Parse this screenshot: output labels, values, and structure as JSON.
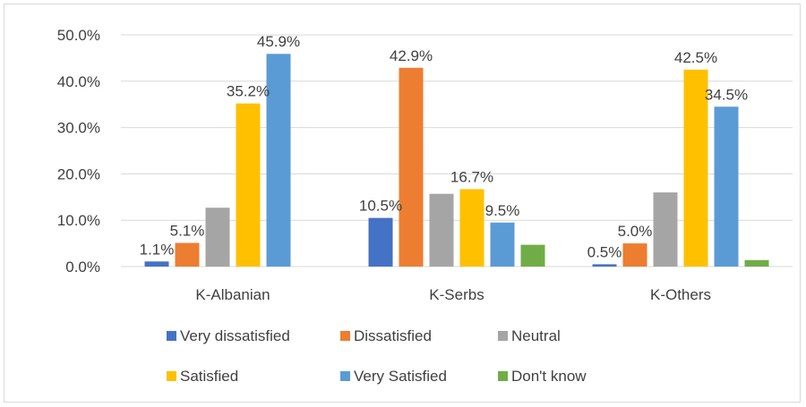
{
  "chart_data": {
    "type": "bar",
    "categories": [
      "K-Albanian",
      "K-Serbs",
      "K-Others"
    ],
    "series": [
      {
        "name": "Very dissatisfied",
        "color": "#4472C4",
        "values": [
          1.1,
          10.5,
          0.5
        ],
        "labels": [
          "1.1%",
          "10.5%",
          "0.5%"
        ]
      },
      {
        "name": "Dissatisfied",
        "color": "#ED7D31",
        "values": [
          5.1,
          42.9,
          5.0
        ],
        "labels": [
          "5.1%",
          "42.9%",
          "5.0%"
        ]
      },
      {
        "name": "Neutral",
        "color": "#A5A5A5",
        "values": [
          12.7,
          15.7,
          16.0
        ],
        "labels": [
          "",
          "",
          ""
        ]
      },
      {
        "name": "Satisfied",
        "color": "#FFC000",
        "values": [
          35.2,
          16.7,
          42.5
        ],
        "labels": [
          "35.2%",
          "16.7%",
          "42.5%"
        ]
      },
      {
        "name": "Very Satisfied",
        "color": "#5B9BD5",
        "values": [
          45.9,
          9.5,
          34.5
        ],
        "labels": [
          "45.9%",
          "9.5%",
          "34.5%"
        ]
      },
      {
        "name": "Don't know",
        "color": "#70AD47",
        "values": [
          0.0,
          4.7,
          1.4
        ],
        "labels": [
          "",
          "",
          ""
        ]
      }
    ],
    "ylim": [
      0,
      50
    ],
    "yticks": [
      "0.0%",
      "10.0%",
      "20.0%",
      "30.0%",
      "40.0%",
      "50.0%"
    ],
    "grid": true,
    "legend": "bottom",
    "title": "",
    "xlabel": "",
    "ylabel": ""
  }
}
